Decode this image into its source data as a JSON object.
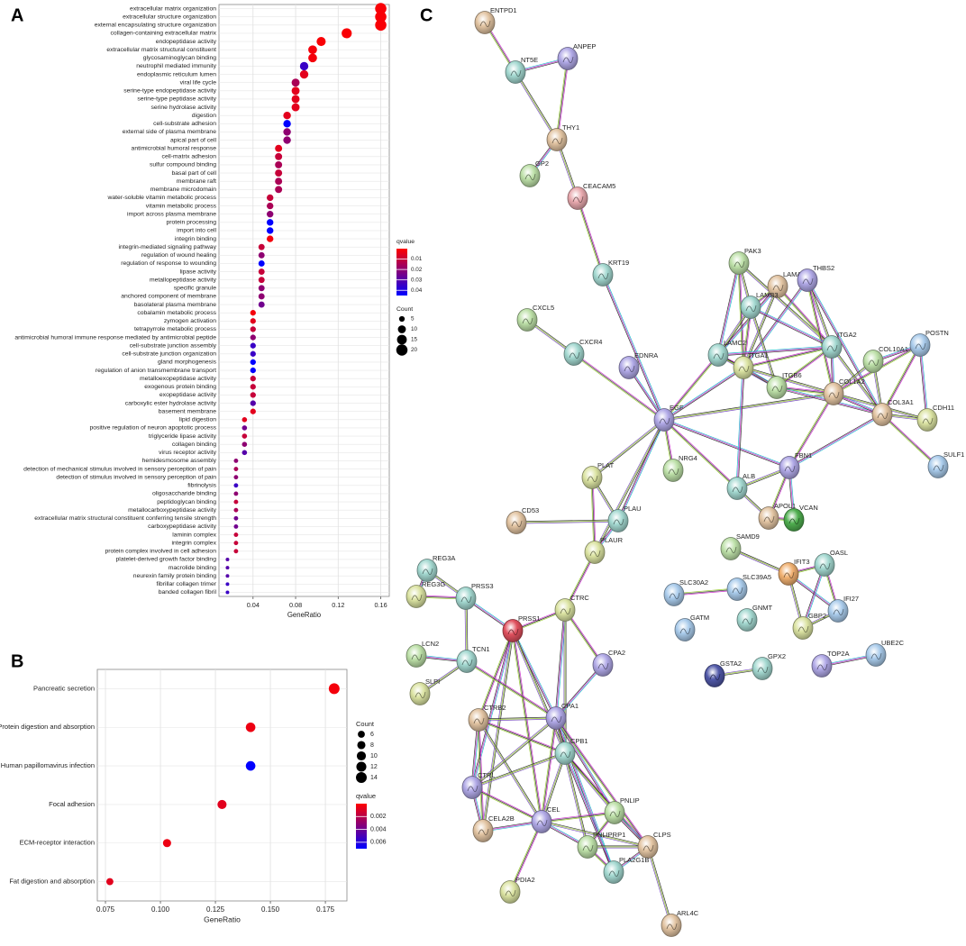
{
  "chart_data": [
    {
      "type": "dot",
      "label": "A",
      "x_label": "GeneRatio",
      "categories": [
        "extracellular matrix organization",
        "extracellular structure organization",
        "external encapsulating structure organization",
        "collagen-containing extracellular matrix",
        "endopeptidase activity",
        "extracellular matrix structural constituent",
        "glycosaminoglycan binding",
        "neutrophil mediated immunity",
        "endoplasmic reticulum lumen",
        "viral life cycle",
        "serine-type endopeptidase activity",
        "serine-type peptidase activity",
        "serine hydrolase activity",
        "digestion",
        "cell-substrate adhesion",
        "external side of plasma membrane",
        "apical part of cell",
        "antimicrobial humoral response",
        "cell-matrix adhesion",
        "sulfur compound binding",
        "basal part of cell",
        "membrane raft",
        "membrane microdomain",
        "water-soluble vitamin metabolic process",
        "vitamin metabolic process",
        "import across plasma membrane",
        "protein processing",
        "import into cell",
        "integrin binding",
        "integrin-mediated signaling pathway",
        "regulation of wound healing",
        "regulation of response to wounding",
        "lipase activity",
        "metallopeptidase activity",
        "specific granule",
        "anchored component of membrane",
        "basolateral plasma membrane",
        "cobalamin metabolic process",
        "zymogen activation",
        "tetrapyrrole metabolic process",
        "antimicrobial humoral immune response mediated by antimicrobial peptide",
        "cell-substrate junction assembly",
        "cell-substrate junction organization",
        "gland morphogenesis",
        "regulation of anion transmembrane transport",
        "metalloexopeptidase activity",
        "exogenous protein binding",
        "exopeptidase activity",
        "carboxylic ester hydrolase activity",
        "basement membrane",
        "lipid digestion",
        "positive regulation of neuron apoptotic process",
        "triglyceride lipase activity",
        "collagen binding",
        "virus receptor activity",
        "hemidesmosome assembly",
        "detection of mechanical stimulus involved in sensory perception of pain",
        "detection of stimulus involved in sensory perception of pain",
        "fibrinolysis",
        "oligosaccharide binding",
        "peptidoglycan binding",
        "metallocarboxypeptidase activity",
        "extracellular matrix structural constituent conferring tensile strength",
        "carboxypeptidase activity",
        "laminin complex",
        "integrin complex",
        "protein complex involved in cell adhesion",
        "platelet-derived growth factor binding",
        "macrolide binding",
        "neurexin family protein binding",
        "fibrillar collagen trimer",
        "banded collagen fibril"
      ],
      "values": [
        0.16,
        0.16,
        0.16,
        0.128,
        0.104,
        0.096,
        0.096,
        0.088,
        0.088,
        0.08,
        0.08,
        0.08,
        0.08,
        0.072,
        0.072,
        0.072,
        0.072,
        0.064,
        0.064,
        0.064,
        0.064,
        0.064,
        0.064,
        0.056,
        0.056,
        0.056,
        0.056,
        0.056,
        0.056,
        0.048,
        0.048,
        0.048,
        0.048,
        0.048,
        0.048,
        0.048,
        0.048,
        0.04,
        0.04,
        0.04,
        0.04,
        0.04,
        0.04,
        0.04,
        0.04,
        0.04,
        0.04,
        0.04,
        0.04,
        0.04,
        0.032,
        0.032,
        0.032,
        0.032,
        0.032,
        0.024,
        0.024,
        0.024,
        0.024,
        0.024,
        0.024,
        0.024,
        0.024,
        0.024,
        0.024,
        0.024,
        0.024,
        0.016,
        0.016,
        0.016,
        0.016,
        0.016
      ],
      "sizes": [
        20,
        20,
        20,
        16,
        13,
        12,
        12,
        11,
        11,
        10,
        10,
        10,
        10,
        9,
        9,
        9,
        9,
        8,
        8,
        8,
        8,
        8,
        8,
        7,
        7,
        7,
        7,
        7,
        7,
        6,
        6,
        6,
        6,
        6,
        6,
        6,
        6,
        5,
        5,
        5,
        5,
        5,
        5,
        5,
        5,
        5,
        5,
        5,
        5,
        5,
        4,
        4,
        4,
        4,
        4,
        3,
        3,
        3,
        3,
        3,
        3,
        3,
        3,
        3,
        3,
        3,
        3,
        2,
        2,
        2,
        2,
        2
      ],
      "qvalues": [
        0.001,
        0.001,
        0.001,
        0.001,
        0.001,
        0.002,
        0.002,
        0.035,
        0.005,
        0.015,
        0.005,
        0.005,
        0.005,
        0.005,
        0.045,
        0.02,
        0.02,
        0.005,
        0.01,
        0.015,
        0.01,
        0.015,
        0.015,
        0.01,
        0.015,
        0.02,
        0.045,
        0.045,
        0.002,
        0.01,
        0.02,
        0.045,
        0.01,
        0.01,
        0.02,
        0.02,
        0.025,
        0.002,
        0.005,
        0.01,
        0.02,
        0.035,
        0.035,
        0.045,
        0.045,
        0.01,
        0.01,
        0.01,
        0.03,
        0.005,
        0.005,
        0.025,
        0.01,
        0.02,
        0.03,
        0.02,
        0.015,
        0.02,
        0.035,
        0.02,
        0.01,
        0.015,
        0.025,
        0.025,
        0.01,
        0.01,
        0.01,
        0.03,
        0.03,
        0.03,
        0.035,
        0.035
      ],
      "xlim": [
        0.008,
        0.168
      ],
      "xticks": [
        0.04,
        0.08,
        0.12,
        0.16
      ],
      "grid": true,
      "color_low": "#ff0000",
      "color_high": "#0000ff",
      "color_legend": {
        "title": "qvalue",
        "lim": [
          0,
          0.045
        ],
        "ticks": [
          0.01,
          0.02,
          0.03,
          0.04
        ]
      },
      "size_legend": {
        "title": "Count",
        "ticks": [
          5,
          10,
          15,
          20
        ]
      }
    },
    {
      "type": "dot",
      "label": "B",
      "x_label": "GeneRatio",
      "categories": [
        "Pancreatic secretion",
        "Protein digestion and absorption",
        "Human papillomavirus infection",
        "Focal adhesion",
        "ECM-receptor interaction",
        "Fat digestion and absorption"
      ],
      "values": [
        0.179,
        0.141,
        0.141,
        0.128,
        0.103,
        0.077
      ],
      "sizes": [
        14,
        11,
        11,
        10,
        8,
        6
      ],
      "qvalues": [
        0.0003,
        0.0005,
        0.007,
        0.0008,
        0.0005,
        0.0008
      ],
      "xlim": [
        0.0713,
        0.1848
      ],
      "xticks": [
        0.075,
        {
          "value": 0.1,
          "label": "0.100"
        },
        0.125,
        {
          "value": 0.15,
          "label": "0.150"
        },
        0.175
      ],
      "grid": true,
      "color_low": "#ff0000",
      "color_high": "#0000ff",
      "color_legend": {
        "title": "qvalue",
        "lim": [
          0,
          0.007
        ],
        "ticks": [
          0.002,
          0.004,
          0.006
        ]
      },
      "size_legend": {
        "title": "Count",
        "ticks": [
          6,
          8,
          10,
          12,
          14
        ]
      }
    }
  ],
  "network": {
    "label": "C",
    "nodes": [
      "ENTPD1",
      "NT5E",
      "ANPEP",
      "THY1",
      "GP2",
      "CEACAM5",
      "KRT19",
      "CXCL5",
      "CXCR4",
      "EDNRA",
      "EGF",
      "PLAT",
      "NRG4",
      "CD53",
      "PLAU",
      "PLAUR",
      "REG3A",
      "REG3G",
      "PRSS3",
      "PRSS1",
      "CTRC",
      "LCN2",
      "TCN1",
      "SLPI",
      "CPA2",
      "CTRB2",
      "CPA1",
      "CPB1",
      "CTRL",
      "CEL",
      "PNLIP",
      "CELA2B",
      "PNLIPRP1",
      "CLPS",
      "PLA2G1B",
      "PDIA2",
      "ARL4C",
      "PAK3",
      "LAMA3",
      "THBS2",
      "LAMB3",
      "LAMC2",
      "ITGA1",
      "ITGA2",
      "ITGB6",
      "COL1A2",
      "COL10A1",
      "POSTN",
      "COL3A1",
      "CDH11",
      "SULF1",
      "FBN1",
      "ALB",
      "APOL1",
      "VCAN",
      "SAMD9",
      "IFIT3",
      "OASL",
      "IFI27",
      "GBP2",
      "SLC39A5",
      "SLC30A2",
      "GNMT",
      "GATM",
      "TOP2A",
      "UBE2C",
      "GPX2",
      "GSTA2"
    ]
  }
}
